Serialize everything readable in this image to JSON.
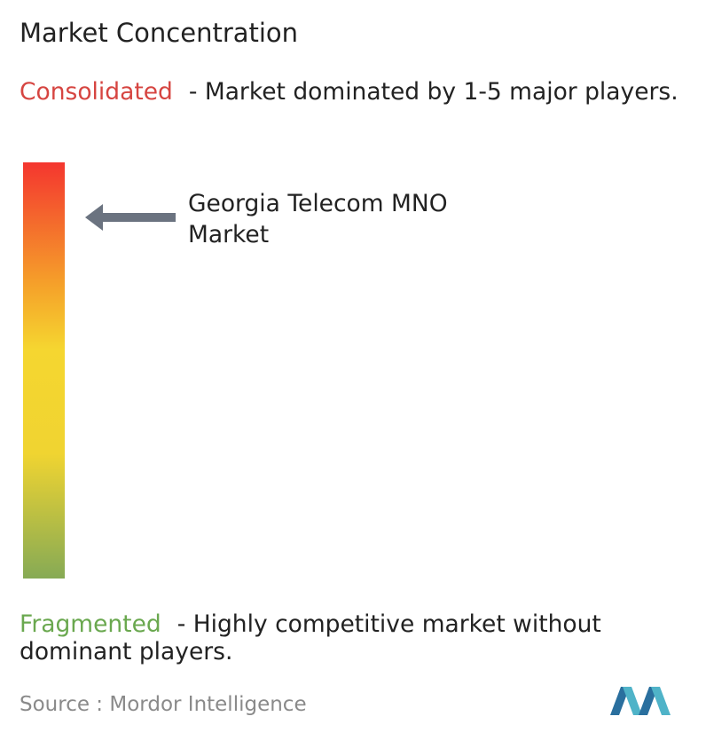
{
  "header": {
    "title": "Market Concentration"
  },
  "consolidated": {
    "term": "Consolidated",
    "description": "- Market dominated by 1-5 major players."
  },
  "market": {
    "label": "Georgia Telecom MNO Market"
  },
  "fragmented": {
    "term": "Fragmented",
    "description": "- Highly competitive market without dominant players."
  },
  "source": {
    "prefix": "Source :",
    "name": "Mordor Intelligence"
  }
}
